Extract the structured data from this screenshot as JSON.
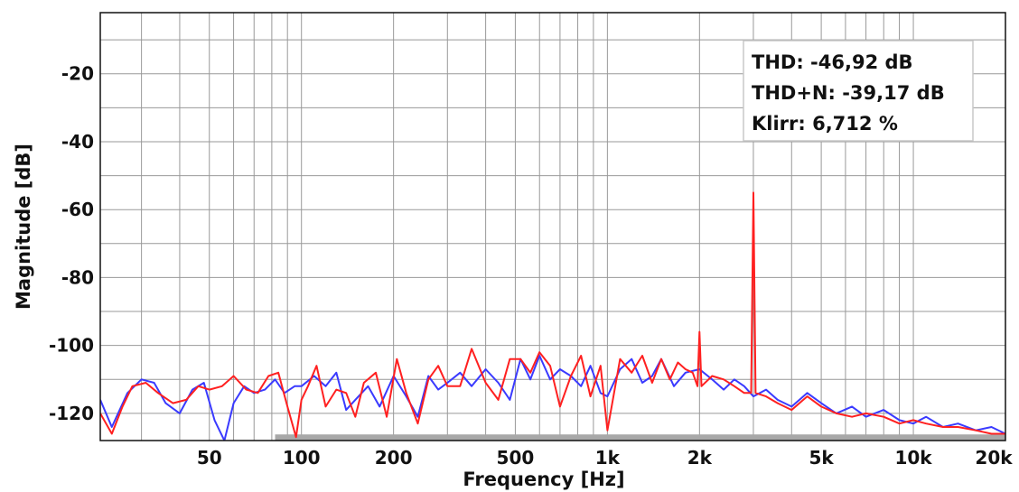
{
  "chart_data": {
    "type": "line",
    "xlabel": "Frequency [Hz]",
    "ylabel": "Magnitude [dB]",
    "x_scale": "log",
    "xlim": [
      22,
      20000
    ],
    "ylim": [
      -128,
      -2
    ],
    "grid": true,
    "x_ticks": [
      {
        "value": 50,
        "label": "50"
      },
      {
        "value": 100,
        "label": "100"
      },
      {
        "value": 200,
        "label": "200"
      },
      {
        "value": 500,
        "label": "500"
      },
      {
        "value": 1000,
        "label": "1k"
      },
      {
        "value": 2000,
        "label": "2k"
      },
      {
        "value": 5000,
        "label": "5k"
      },
      {
        "value": 10000,
        "label": "10k"
      },
      {
        "value": 20000,
        "label": "20k"
      }
    ],
    "y_ticks": [
      {
        "value": -20,
        "label": "-20"
      },
      {
        "value": -40,
        "label": "-40"
      },
      {
        "value": -60,
        "label": "-60"
      },
      {
        "value": -80,
        "label": "-80"
      },
      {
        "value": -100,
        "label": "-100"
      },
      {
        "value": -120,
        "label": "-120"
      }
    ],
    "colors": {
      "blue": "#3a3aff",
      "red": "#ff2020",
      "grid": "#999999",
      "noise_band": "#a8a8a8"
    },
    "noise_band": {
      "x_start": 82,
      "x_end": 20000,
      "y_top": -126.2,
      "y_bottom": -128
    },
    "annotations": [
      "THD: -46,92 dB",
      "THD+N: -39,17 dB",
      "Klirr: 6,712 %"
    ],
    "series": [
      {
        "color": "#3a3aff",
        "x": [
          22,
          24,
          27,
          30,
          33,
          36,
          40,
          44,
          48,
          52,
          56,
          60,
          65,
          70,
          76,
          82,
          88,
          95,
          100,
          110,
          120,
          130,
          140,
          150,
          165,
          180,
          200,
          220,
          240,
          260,
          280,
          300,
          330,
          360,
          400,
          440,
          480,
          520,
          560,
          600,
          650,
          700,
          760,
          820,
          880,
          950,
          1000,
          1100,
          1200,
          1300,
          1400,
          1500,
          1650,
          1800,
          2000,
          2200,
          2400,
          2600,
          2800,
          3000,
          3300,
          3600,
          4000,
          4500,
          5000,
          5600,
          6300,
          7000,
          8000,
          9000,
          10000,
          11000,
          12500,
          14000,
          16000,
          18000,
          20000
        ],
        "y": [
          -116,
          -124,
          -114,
          -110,
          -111,
          -117,
          -120,
          -113,
          -111,
          -122,
          -128,
          -117,
          -112,
          -114,
          -113,
          -110,
          -114,
          -112,
          -112,
          -109,
          -112,
          -108,
          -119,
          -116,
          -112,
          -118,
          -109,
          -115,
          -121,
          -109,
          -113,
          -111,
          -108,
          -112,
          -107,
          -111,
          -116,
          -104,
          -110,
          -103,
          -110,
          -107,
          -109,
          -112,
          -106,
          -114,
          -115,
          -107,
          -104,
          -111,
          -109,
          -104,
          -112,
          -108,
          -107,
          -110,
          -113,
          -110,
          -112,
          -115,
          -113,
          -116,
          -118,
          -114,
          -117,
          -120,
          -118,
          -121,
          -119,
          -122,
          -123,
          -121,
          -124,
          -123,
          -125,
          -124,
          -126
        ]
      },
      {
        "color": "#ff2020",
        "x": [
          22,
          24,
          26,
          28,
          31,
          34,
          38,
          42,
          46,
          50,
          55,
          60,
          66,
          72,
          78,
          84,
          90,
          96,
          100,
          105,
          112,
          120,
          130,
          140,
          150,
          160,
          175,
          190,
          205,
          220,
          240,
          260,
          280,
          300,
          330,
          360,
          400,
          440,
          480,
          520,
          560,
          600,
          650,
          700,
          760,
          820,
          880,
          950,
          1000,
          1100,
          1200,
          1300,
          1400,
          1500,
          1600,
          1700,
          1800,
          1900,
          1970,
          2000,
          2030,
          2200,
          2400,
          2600,
          2800,
          2950,
          3000,
          3050,
          3300,
          3600,
          4000,
          4500,
          5000,
          5600,
          6300,
          7000,
          8000,
          9000,
          10000,
          11000,
          12500,
          14000,
          16000,
          18000,
          20000
        ],
        "y": [
          -120,
          -126,
          -118,
          -112,
          -111,
          -114,
          -117,
          -116,
          -112,
          -113,
          -112,
          -109,
          -113,
          -114,
          -109,
          -108,
          -118,
          -127,
          -116,
          -112,
          -106,
          -118,
          -113,
          -114,
          -121,
          -111,
          -108,
          -121,
          -104,
          -114,
          -123,
          -110,
          -106,
          -112,
          -112,
          -101,
          -111,
          -116,
          -104,
          -104,
          -108,
          -102,
          -106,
          -118,
          -109,
          -103,
          -115,
          -106,
          -125,
          -104,
          -108,
          -103,
          -111,
          -104,
          -110,
          -105,
          -107,
          -108,
          -112,
          -96,
          -112,
          -109,
          -110,
          -112,
          -114,
          -114,
          -55,
          -114,
          -115,
          -117,
          -119,
          -115,
          -118,
          -120,
          -121,
          -120,
          -121,
          -123,
          -122,
          -123,
          -124,
          -124,
          -125,
          -126,
          -126
        ]
      }
    ]
  }
}
